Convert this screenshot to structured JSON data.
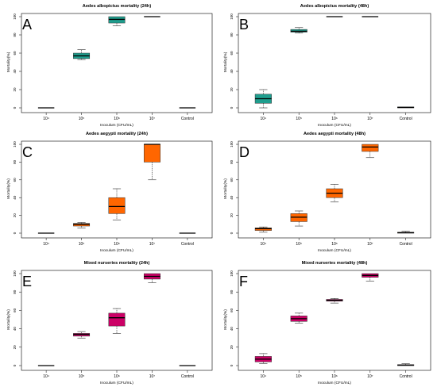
{
  "chart_data": [
    {
      "type": "box",
      "panel_letter": "A",
      "title": "Aedes albopictus mortality (24h)",
      "xlabel": "Inoculum (CFU/mL)",
      "ylabel": "Mortality(%)",
      "ylim": [
        0,
        100
      ],
      "yticks": [
        0,
        20,
        40,
        60,
        80,
        100
      ],
      "categories": [
        "10⁴",
        "10⁵",
        "10⁶",
        "10⁷",
        "Control"
      ],
      "fill_color": "#1f9e8e",
      "boxes": [
        {
          "min": 0,
          "q1": 0,
          "median": 0,
          "q3": 0,
          "max": 0
        },
        {
          "min": 53,
          "q1": 54,
          "median": 57,
          "q3": 60,
          "max": 64
        },
        {
          "min": 90,
          "q1": 93,
          "median": 97,
          "q3": 100,
          "max": 100
        },
        {
          "min": 100,
          "q1": 100,
          "median": 100,
          "q3": 100,
          "max": 100
        },
        {
          "min": 0,
          "q1": 0,
          "median": 0,
          "q3": 0,
          "max": 0
        }
      ]
    },
    {
      "type": "box",
      "panel_letter": "B",
      "title": "Aedes albopictus mortality (48h)",
      "xlabel": "Inoculum (CFU/mL)",
      "ylabel": "Mortality(%)",
      "ylim": [
        0,
        100
      ],
      "yticks": [
        0,
        20,
        40,
        60,
        80,
        100
      ],
      "categories": [
        "10⁴",
        "10⁵",
        "10⁶",
        "10⁷",
        "Control"
      ],
      "fill_color": "#1f9e8e",
      "boxes": [
        {
          "min": 0,
          "q1": 5,
          "median": 10,
          "q3": 15,
          "max": 20
        },
        {
          "min": 82,
          "q1": 83,
          "median": 84,
          "q3": 86,
          "max": 88
        },
        {
          "min": 100,
          "q1": 100,
          "median": 100,
          "q3": 100,
          "max": 100
        },
        {
          "min": 100,
          "q1": 100,
          "median": 100,
          "q3": 100,
          "max": 100
        },
        {
          "min": 0,
          "q1": 0,
          "median": 0.5,
          "q3": 1,
          "max": 1
        }
      ]
    },
    {
      "type": "box",
      "panel_letter": "C",
      "title": "Aedes aegypti mortality (24h)",
      "xlabel": "Inoculum (CFU/mL)",
      "ylabel": "Mortality(%)",
      "ylim": [
        0,
        100
      ],
      "yticks": [
        0,
        20,
        40,
        60,
        80,
        100
      ],
      "categories": [
        "10⁴",
        "10⁵",
        "10⁶",
        "10⁷",
        "Control"
      ],
      "fill_color": "#ff6600",
      "boxes": [
        {
          "min": 0,
          "q1": 0,
          "median": 0,
          "q3": 0,
          "max": 0
        },
        {
          "min": 6,
          "q1": 8,
          "median": 10,
          "q3": 11,
          "max": 12
        },
        {
          "min": 15,
          "q1": 22,
          "median": 30,
          "q3": 40,
          "max": 50
        },
        {
          "min": 60,
          "q1": 80,
          "median": 100,
          "q3": 100,
          "max": 100
        },
        {
          "min": 0,
          "q1": 0,
          "median": 0,
          "q3": 0,
          "max": 0
        }
      ]
    },
    {
      "type": "box",
      "panel_letter": "D",
      "title": "Aedes aegypti mortality (48h)",
      "xlabel": "Inoculum (CFU/mL)",
      "ylabel": "Mortality(%)",
      "ylim": [
        0,
        100
      ],
      "yticks": [
        0,
        20,
        40,
        60,
        80,
        100
      ],
      "categories": [
        "10⁴",
        "10⁵",
        "10⁶",
        "10⁷",
        "Control"
      ],
      "fill_color": "#ff6600",
      "boxes": [
        {
          "min": 1,
          "q1": 3,
          "median": 5,
          "q3": 6,
          "max": 7
        },
        {
          "min": 8,
          "q1": 13,
          "median": 18,
          "q3": 22,
          "max": 25
        },
        {
          "min": 35,
          "q1": 40,
          "median": 45,
          "q3": 50,
          "max": 55
        },
        {
          "min": 85,
          "q1": 92,
          "median": 97,
          "q3": 100,
          "max": 100
        },
        {
          "min": 0,
          "q1": 0,
          "median": 0.5,
          "q3": 1,
          "max": 2
        }
      ]
    },
    {
      "type": "box",
      "panel_letter": "E",
      "title": "Mixed nurseries mortality (24h)",
      "xlabel": "Inoculum (CFU/mL)",
      "ylabel": "Mortality(%)",
      "ylim": [
        0,
        100
      ],
      "yticks": [
        0,
        20,
        40,
        60,
        80,
        100
      ],
      "categories": [
        "10⁴",
        "10⁵",
        "10⁶",
        "10⁷",
        "Control"
      ],
      "fill_color": "#cc0066",
      "boxes": [
        {
          "min": 0,
          "q1": 0,
          "median": 0,
          "q3": 0,
          "max": 0
        },
        {
          "min": 30,
          "q1": 32,
          "median": 34,
          "q3": 35,
          "max": 37
        },
        {
          "min": 35,
          "q1": 43,
          "median": 52,
          "q3": 57,
          "max": 62
        },
        {
          "min": 90,
          "q1": 94,
          "median": 97,
          "q3": 100,
          "max": 100
        },
        {
          "min": 0,
          "q1": 0,
          "median": 0,
          "q3": 0,
          "max": 0
        }
      ]
    },
    {
      "type": "box",
      "panel_letter": "F",
      "title": "Mixed nurseries mortality (48h)",
      "xlabel": "Inoculum (CFU/mL)",
      "ylabel": "Mortality(%)",
      "ylim": [
        0,
        100
      ],
      "yticks": [
        0,
        20,
        40,
        60,
        80,
        100
      ],
      "categories": [
        "10⁴",
        "10⁵",
        "10⁶",
        "10⁷",
        "Control"
      ],
      "fill_color": "#cc0066",
      "boxes": [
        {
          "min": 2,
          "q1": 4,
          "median": 7,
          "q3": 10,
          "max": 13
        },
        {
          "min": 46,
          "q1": 48,
          "median": 51,
          "q3": 54,
          "max": 57
        },
        {
          "min": 68,
          "q1": 70,
          "median": 71,
          "q3": 72,
          "max": 73
        },
        {
          "min": 92,
          "q1": 96,
          "median": 98,
          "q3": 100,
          "max": 100
        },
        {
          "min": 0,
          "q1": 0,
          "median": 0.5,
          "q3": 1,
          "max": 2
        }
      ]
    }
  ]
}
